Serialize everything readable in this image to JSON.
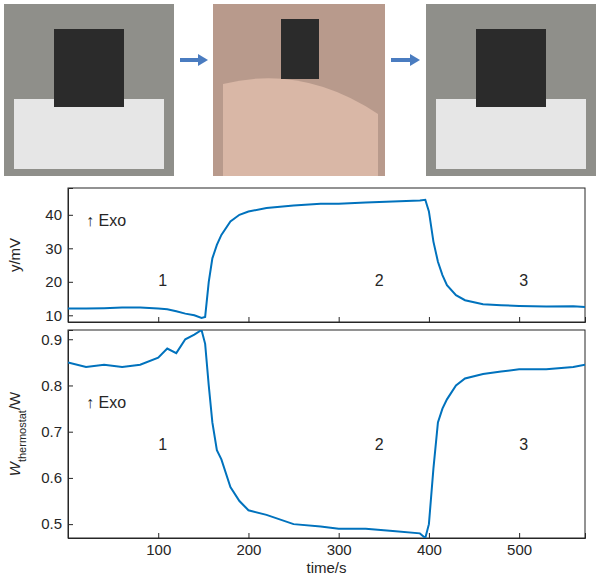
{
  "chart_data": [
    {
      "type": "line",
      "ylabel": "y/mV",
      "x": [
        0,
        20,
        40,
        60,
        80,
        100,
        110,
        120,
        130,
        140,
        148,
        152,
        156,
        160,
        165,
        170,
        180,
        190,
        200,
        220,
        250,
        280,
        300,
        330,
        360,
        390,
        396,
        400,
        405,
        410,
        415,
        420,
        430,
        440,
        460,
        480,
        500,
        530,
        560,
        573
      ],
      "series": [
        {
          "color": "#0072bd",
          "values": [
            12,
            12,
            12.1,
            12.3,
            12.3,
            12,
            11.8,
            11.2,
            10.5,
            10,
            9.2,
            9.5,
            20,
            27,
            31,
            34,
            38,
            40,
            41,
            42,
            42.8,
            43.3,
            43.3,
            43.7,
            44,
            44.3,
            44.5,
            41,
            32,
            26,
            22,
            19,
            16,
            14.5,
            13.3,
            13,
            12.8,
            12.6,
            12.7,
            12.5
          ]
        }
      ],
      "xlim": [
        0,
        573
      ],
      "xticks": [
        100,
        200,
        300,
        400,
        500
      ],
      "ylim": [
        8,
        48
      ],
      "yticks": [
        10,
        20,
        30,
        40
      ],
      "tick_labels": "y",
      "grid": false,
      "annotations": [
        {
          "text": "↑ Exo",
          "x": 20,
          "y": 38
        },
        {
          "text": "1",
          "x": 100,
          "y": 20
        },
        {
          "text": "2",
          "x": 340,
          "y": 20
        },
        {
          "text": "3",
          "x": 500,
          "y": 20
        }
      ]
    },
    {
      "type": "line",
      "xlabel": "time/s",
      "ylabel": [
        "W",
        "thermostat",
        "/W"
      ],
      "x": [
        0,
        20,
        40,
        60,
        80,
        100,
        110,
        120,
        130,
        140,
        148,
        152,
        156,
        160,
        165,
        170,
        180,
        190,
        200,
        220,
        250,
        280,
        300,
        330,
        360,
        390,
        396,
        400,
        405,
        410,
        415,
        420,
        430,
        440,
        460,
        480,
        500,
        530,
        560,
        573
      ],
      "series": [
        {
          "color": "#0072bd",
          "values": [
            0.85,
            0.84,
            0.845,
            0.84,
            0.845,
            0.86,
            0.88,
            0.87,
            0.9,
            0.91,
            0.92,
            0.89,
            0.8,
            0.72,
            0.66,
            0.64,
            0.58,
            0.55,
            0.53,
            0.52,
            0.5,
            0.495,
            0.49,
            0.49,
            0.485,
            0.48,
            0.47,
            0.5,
            0.62,
            0.72,
            0.75,
            0.77,
            0.8,
            0.815,
            0.825,
            0.83,
            0.835,
            0.835,
            0.84,
            0.845
          ]
        }
      ],
      "xlim": [
        0,
        573
      ],
      "xticks": [
        100,
        200,
        300,
        400,
        500
      ],
      "ylim": [
        0.47,
        0.92
      ],
      "yticks": [
        0.5,
        0.6,
        0.7,
        0.8,
        0.9
      ],
      "grid": false,
      "annotations": [
        {
          "text": "↑ Exo",
          "x": 20,
          "y": 0.76
        },
        {
          "text": "1",
          "x": 100,
          "y": 0.67
        },
        {
          "text": "2",
          "x": 340,
          "y": 0.67
        },
        {
          "text": "3",
          "x": 500,
          "y": 0.67
        }
      ]
    }
  ]
}
